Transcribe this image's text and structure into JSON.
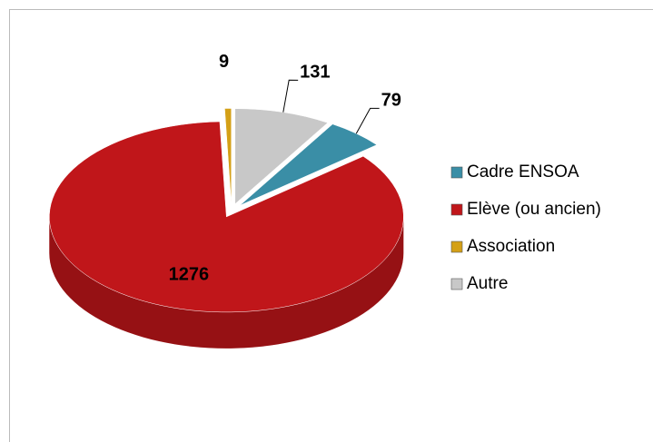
{
  "chart_data": {
    "type": "pie",
    "categories": [
      "Cadre ENSOA",
      "Elève (ou ancien)",
      "Association",
      "Autre"
    ],
    "values": [
      79,
      1276,
      9,
      131
    ],
    "colors": [
      "#3a8ea6",
      "#c0161a",
      "#d4a017",
      "#c8c8c8"
    ],
    "legend": "right"
  }
}
